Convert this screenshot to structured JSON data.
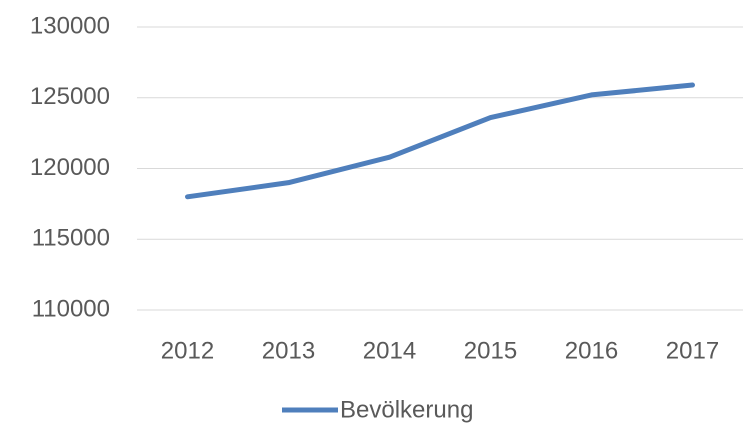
{
  "chart_data": {
    "type": "line",
    "categories": [
      "2012",
      "2013",
      "2014",
      "2015",
      "2016",
      "2017"
    ],
    "series": [
      {
        "name": "Bevölkerung",
        "color": "#4f7fbc",
        "values": [
          118000,
          119000,
          120800,
          123600,
          125200,
          125900
        ]
      }
    ],
    "ylim": [
      110000,
      130000
    ],
    "yticks": [
      110000,
      115000,
      120000,
      125000,
      130000
    ],
    "grid": true,
    "legend": "bottom"
  }
}
